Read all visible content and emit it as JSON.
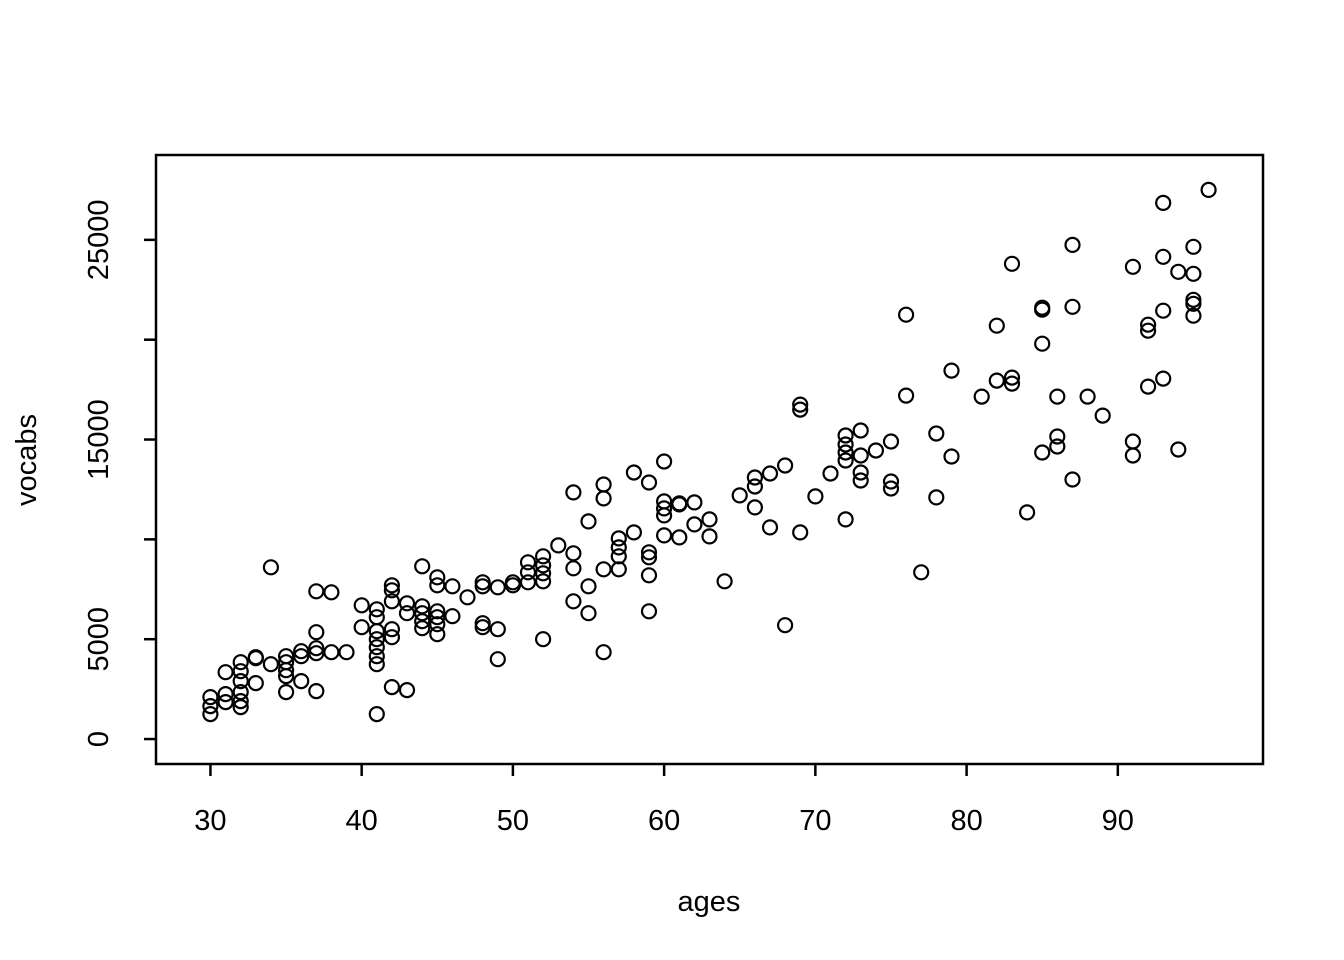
{
  "figure": {
    "background_color": "#ffffff",
    "foreground_color": "#000000"
  },
  "chart_data": {
    "type": "scatter",
    "title": "",
    "xlabel": "ages",
    "ylabel": "vocabs",
    "xlim": [
      26.4,
      99.6
    ],
    "ylim": [
      -1250,
      29250
    ],
    "grid": false,
    "legend": null,
    "marker": {
      "shape": "open-circle",
      "color": "#000000",
      "radius_px": 7,
      "stroke_px": 2.2
    },
    "x_ticks": {
      "values": [
        30,
        40,
        50,
        60,
        70,
        80,
        90
      ],
      "labels": [
        "30",
        "40",
        "50",
        "60",
        "70",
        "80",
        "90"
      ]
    },
    "y_ticks": {
      "values": [
        0,
        5000,
        10000,
        15000,
        20000,
        25000
      ],
      "labels": [
        "0",
        "5000",
        "",
        "15000",
        "",
        "25000"
      ]
    },
    "points": [
      [
        30,
        2100
      ],
      [
        30,
        1650
      ],
      [
        30,
        1250
      ],
      [
        31,
        3350
      ],
      [
        31,
        2250
      ],
      [
        31,
        1850
      ],
      [
        32,
        3850
      ],
      [
        32,
        3400
      ],
      [
        32,
        2900
      ],
      [
        32,
        2350
      ],
      [
        32,
        1900
      ],
      [
        32,
        1600
      ],
      [
        33,
        4100
      ],
      [
        33,
        4050
      ],
      [
        33,
        2800
      ],
      [
        34,
        8600
      ],
      [
        34,
        3750
      ],
      [
        35,
        4150
      ],
      [
        35,
        3850
      ],
      [
        35,
        3450
      ],
      [
        35,
        3150
      ],
      [
        35,
        2350
      ],
      [
        36,
        4400
      ],
      [
        36,
        4150
      ],
      [
        36,
        2900
      ],
      [
        37,
        7400
      ],
      [
        37,
        5350
      ],
      [
        37,
        4550
      ],
      [
        37,
        4300
      ],
      [
        37,
        2400
      ],
      [
        38,
        7350
      ],
      [
        38,
        4350
      ],
      [
        39,
        4350
      ],
      [
        40,
        6700
      ],
      [
        40,
        5600
      ],
      [
        41,
        6500
      ],
      [
        41,
        6100
      ],
      [
        41,
        5400
      ],
      [
        41,
        5000
      ],
      [
        41,
        4600
      ],
      [
        41,
        4150
      ],
      [
        41,
        3750
      ],
      [
        41,
        1250
      ],
      [
        42,
        7700
      ],
      [
        42,
        7450
      ],
      [
        42,
        6900
      ],
      [
        42,
        5500
      ],
      [
        42,
        5100
      ],
      [
        42,
        2600
      ],
      [
        43,
        6800
      ],
      [
        43,
        6300
      ],
      [
        43,
        2450
      ],
      [
        44,
        8650
      ],
      [
        44,
        6650
      ],
      [
        44,
        6300
      ],
      [
        44,
        5900
      ],
      [
        44,
        5550
      ],
      [
        45,
        8100
      ],
      [
        45,
        7700
      ],
      [
        45,
        6400
      ],
      [
        45,
        6100
      ],
      [
        45,
        5750
      ],
      [
        45,
        5250
      ],
      [
        46,
        7650
      ],
      [
        46,
        6150
      ],
      [
        47,
        7100
      ],
      [
        48,
        7850
      ],
      [
        48,
        7650
      ],
      [
        48,
        5800
      ],
      [
        48,
        5600
      ],
      [
        49,
        7600
      ],
      [
        49,
        5500
      ],
      [
        49,
        4000
      ],
      [
        50,
        7850
      ],
      [
        50,
        7700
      ],
      [
        51,
        8850
      ],
      [
        51,
        8350
      ],
      [
        51,
        7850
      ],
      [
        52,
        9150
      ],
      [
        52,
        8700
      ],
      [
        52,
        8300
      ],
      [
        52,
        7900
      ],
      [
        52,
        5000
      ],
      [
        53,
        9700
      ],
      [
        54,
        12350
      ],
      [
        54,
        9300
      ],
      [
        54,
        8550
      ],
      [
        54,
        6900
      ],
      [
        55,
        10900
      ],
      [
        55,
        7650
      ],
      [
        55,
        6300
      ],
      [
        56,
        12750
      ],
      [
        56,
        12050
      ],
      [
        56,
        8500
      ],
      [
        56,
        4350
      ],
      [
        57,
        10050
      ],
      [
        57,
        9600
      ],
      [
        57,
        9150
      ],
      [
        57,
        8500
      ],
      [
        58,
        13350
      ],
      [
        58,
        10350
      ],
      [
        59,
        12850
      ],
      [
        59,
        9350
      ],
      [
        59,
        9100
      ],
      [
        59,
        8200
      ],
      [
        59,
        6400
      ],
      [
        60,
        13900
      ],
      [
        60,
        11900
      ],
      [
        60,
        11550
      ],
      [
        60,
        11200
      ],
      [
        60,
        10200
      ],
      [
        61,
        11800
      ],
      [
        61,
        11750
      ],
      [
        61,
        10100
      ],
      [
        62,
        11850
      ],
      [
        62,
        10750
      ],
      [
        63,
        11000
      ],
      [
        63,
        10150
      ],
      [
        64,
        7900
      ],
      [
        65,
        12200
      ],
      [
        66,
        13100
      ],
      [
        66,
        12650
      ],
      [
        66,
        11600
      ],
      [
        67,
        13300
      ],
      [
        67,
        10600
      ],
      [
        68,
        13700
      ],
      [
        68,
        5700
      ],
      [
        69,
        16750
      ],
      [
        69,
        16500
      ],
      [
        69,
        10350
      ],
      [
        70,
        12150
      ],
      [
        71,
        13300
      ],
      [
        72,
        15200
      ],
      [
        72,
        14750
      ],
      [
        72,
        14350
      ],
      [
        72,
        13950
      ],
      [
        72,
        11000
      ],
      [
        73,
        15450
      ],
      [
        73,
        14200
      ],
      [
        73,
        13350
      ],
      [
        73,
        12950
      ],
      [
        74,
        14450
      ],
      [
        75,
        14900
      ],
      [
        75,
        12900
      ],
      [
        75,
        12550
      ],
      [
        76,
        21250
      ],
      [
        76,
        17200
      ],
      [
        77,
        8350
      ],
      [
        78,
        15300
      ],
      [
        78,
        12100
      ],
      [
        79,
        18450
      ],
      [
        79,
        14150
      ],
      [
        81,
        17150
      ],
      [
        82,
        20700
      ],
      [
        82,
        17950
      ],
      [
        83,
        23800
      ],
      [
        83,
        18100
      ],
      [
        83,
        17800
      ],
      [
        84,
        11350
      ],
      [
        85,
        21600
      ],
      [
        85,
        21500
      ],
      [
        85,
        19800
      ],
      [
        85,
        14350
      ],
      [
        86,
        17150
      ],
      [
        86,
        15150
      ],
      [
        86,
        14650
      ],
      [
        87,
        24750
      ],
      [
        87,
        21650
      ],
      [
        87,
        13000
      ],
      [
        88,
        17150
      ],
      [
        89,
        16200
      ],
      [
        91,
        23650
      ],
      [
        91,
        14900
      ],
      [
        91,
        14200
      ],
      [
        92,
        20750
      ],
      [
        92,
        20450
      ],
      [
        92,
        17650
      ],
      [
        93,
        26850
      ],
      [
        93,
        24150
      ],
      [
        93,
        21450
      ],
      [
        93,
        18050
      ],
      [
        94,
        23400
      ],
      [
        94,
        14500
      ],
      [
        95,
        24650
      ],
      [
        95,
        23300
      ],
      [
        95,
        22000
      ],
      [
        95,
        21800
      ],
      [
        95,
        21200
      ],
      [
        96,
        27500
      ]
    ]
  }
}
